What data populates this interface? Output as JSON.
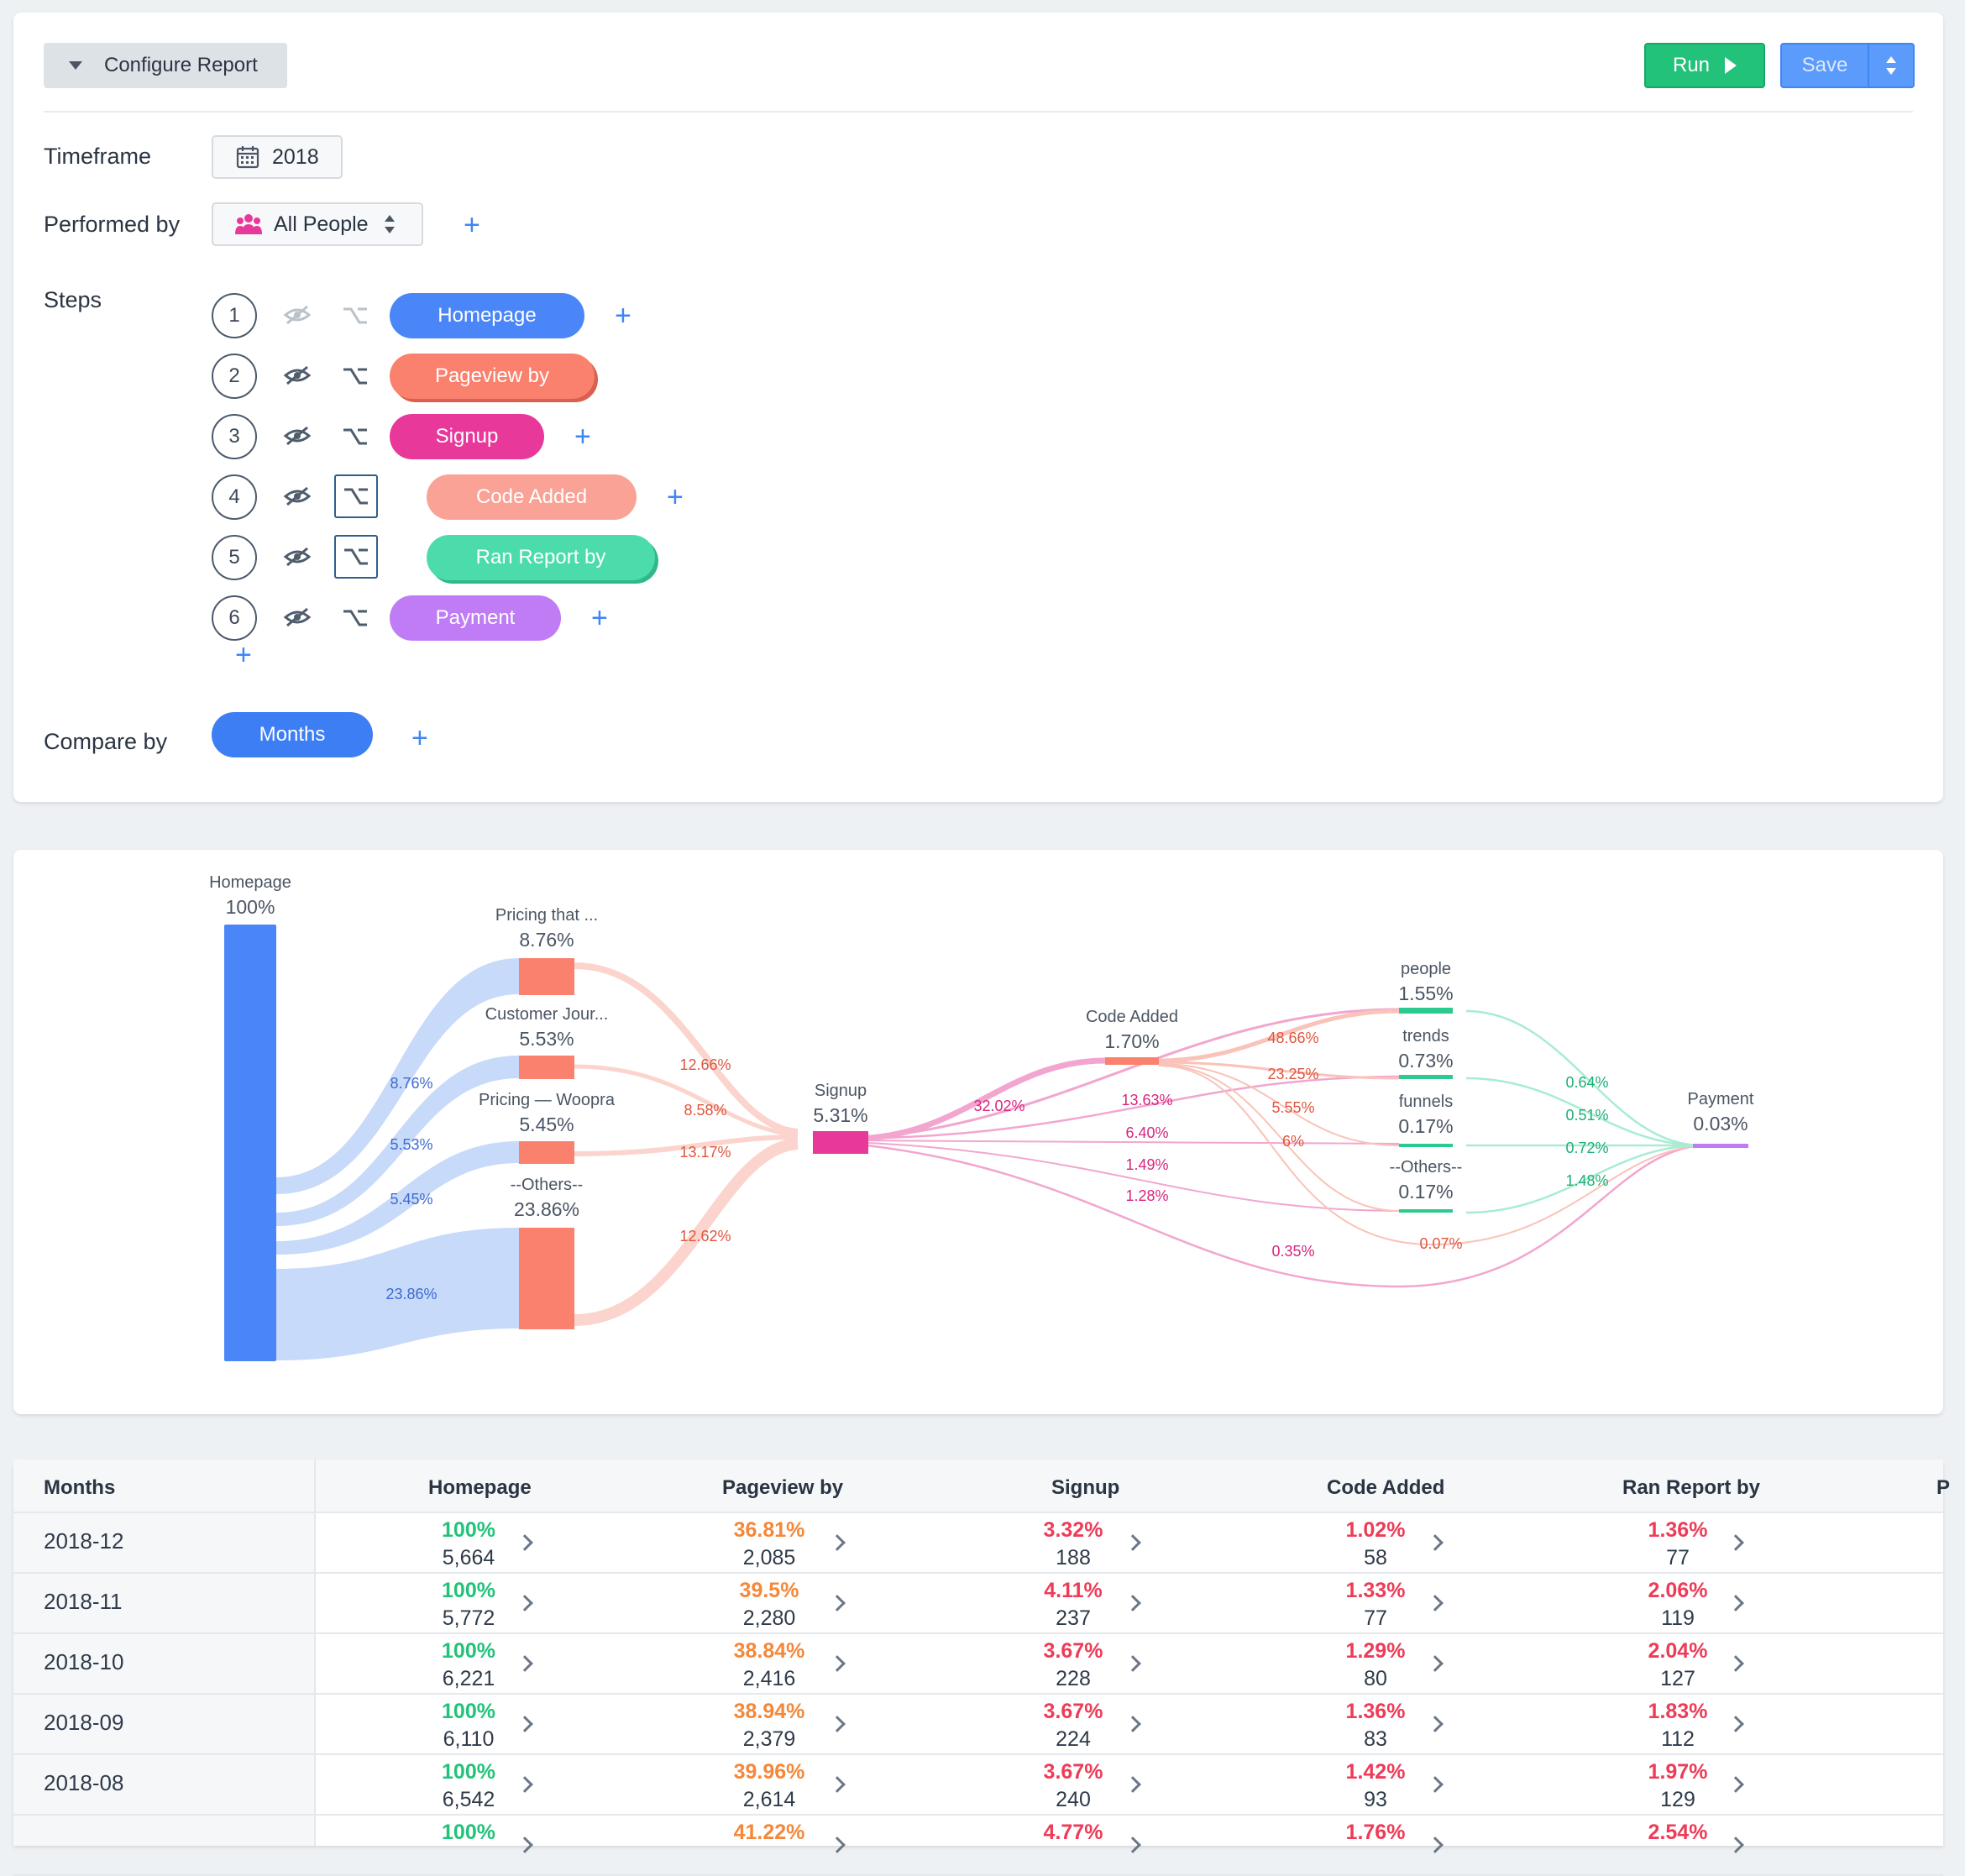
{
  "config": {
    "configure_label": "Configure Report",
    "run_label": "Run",
    "save_label": "Save",
    "timeframe_label": "Timeframe",
    "timeframe_value": "2018",
    "performed_by_label": "Performed by",
    "performed_by_value": "All People",
    "steps_label": "Steps",
    "compare_by_label": "Compare by",
    "compare_by_value": "Months",
    "steps": [
      {
        "num": "1",
        "label": "Homepage",
        "color": "#4a86f7"
      },
      {
        "num": "2",
        "label": "Pageview by",
        "color": "#f9816e"
      },
      {
        "num": "3",
        "label": "Signup",
        "color": "#e8399a"
      },
      {
        "num": "4",
        "label": "Code Added",
        "color": "#f9a295"
      },
      {
        "num": "5",
        "label": "Ran Report by",
        "color": "#4cdcab"
      },
      {
        "num": "6",
        "label": "Payment",
        "color": "#bf7cf5"
      }
    ]
  },
  "flow": {
    "homepage": {
      "name": "Homepage",
      "pct": "100%"
    },
    "pageview_nodes": [
      {
        "name": "Pricing that ...",
        "pct": "8.76%"
      },
      {
        "name": "Customer Jour...",
        "pct": "5.53%"
      },
      {
        "name": "Pricing — Woopra",
        "pct": "5.45%"
      },
      {
        "name": "--Others--",
        "pct": "23.86%"
      }
    ],
    "home_links": [
      "8.76%",
      "5.53%",
      "5.45%",
      "23.86%"
    ],
    "to_signup_links": [
      "12.66%",
      "8.58%",
      "13.17%",
      "12.62%"
    ],
    "signup": {
      "name": "Signup",
      "pct": "5.31%"
    },
    "signup_links": [
      "32.02%",
      "13.63%",
      "6.40%",
      "1.49%",
      "1.28%",
      "0.35%"
    ],
    "code_added": {
      "name": "Code Added",
      "pct": "1.70%"
    },
    "code_links": [
      "48.66%",
      "23.25%",
      "5.55%",
      "6%",
      "0.07%"
    ],
    "report_nodes": [
      {
        "name": "people",
        "pct": "1.55%"
      },
      {
        "name": "trends",
        "pct": "0.73%"
      },
      {
        "name": "funnels",
        "pct": "0.17%"
      },
      {
        "name": "--Others--",
        "pct": "0.17%"
      }
    ],
    "payment_links": [
      "0.64%",
      "0.51%",
      "0.72%",
      "1.48%"
    ],
    "payment": {
      "name": "Payment",
      "pct": "0.03%"
    }
  },
  "table": {
    "headers": [
      "Months",
      "Homepage",
      "Pageview by",
      "Signup",
      "Code Added",
      "Ran Report by",
      "P"
    ],
    "colors": {
      "green": "#22c27a",
      "orange": "#f4883a",
      "red": "#ee3b57"
    },
    "rows": [
      {
        "month": "2018-12",
        "cells": [
          [
            "100%",
            "5,664"
          ],
          [
            "36.81%",
            "2,085"
          ],
          [
            "3.32%",
            "188"
          ],
          [
            "1.02%",
            "58"
          ],
          [
            "1.36%",
            "77"
          ]
        ]
      },
      {
        "month": "2018-11",
        "cells": [
          [
            "100%",
            "5,772"
          ],
          [
            "39.5%",
            "2,280"
          ],
          [
            "4.11%",
            "237"
          ],
          [
            "1.33%",
            "77"
          ],
          [
            "2.06%",
            "119"
          ]
        ]
      },
      {
        "month": "2018-10",
        "cells": [
          [
            "100%",
            "6,221"
          ],
          [
            "38.84%",
            "2,416"
          ],
          [
            "3.67%",
            "228"
          ],
          [
            "1.29%",
            "80"
          ],
          [
            "2.04%",
            "127"
          ]
        ]
      },
      {
        "month": "2018-09",
        "cells": [
          [
            "100%",
            "6,110"
          ],
          [
            "38.94%",
            "2,379"
          ],
          [
            "3.67%",
            "224"
          ],
          [
            "1.36%",
            "83"
          ],
          [
            "1.83%",
            "112"
          ]
        ]
      },
      {
        "month": "2018-08",
        "cells": [
          [
            "100%",
            "6,542"
          ],
          [
            "39.96%",
            "2,614"
          ],
          [
            "3.67%",
            "240"
          ],
          [
            "1.42%",
            "93"
          ],
          [
            "1.97%",
            "129"
          ]
        ]
      },
      {
        "month": "",
        "cells": [
          [
            "100%",
            ""
          ],
          [
            "41.22%",
            ""
          ],
          [
            "4.77%",
            ""
          ],
          [
            "1.76%",
            ""
          ],
          [
            "2.54%",
            ""
          ]
        ]
      }
    ]
  }
}
